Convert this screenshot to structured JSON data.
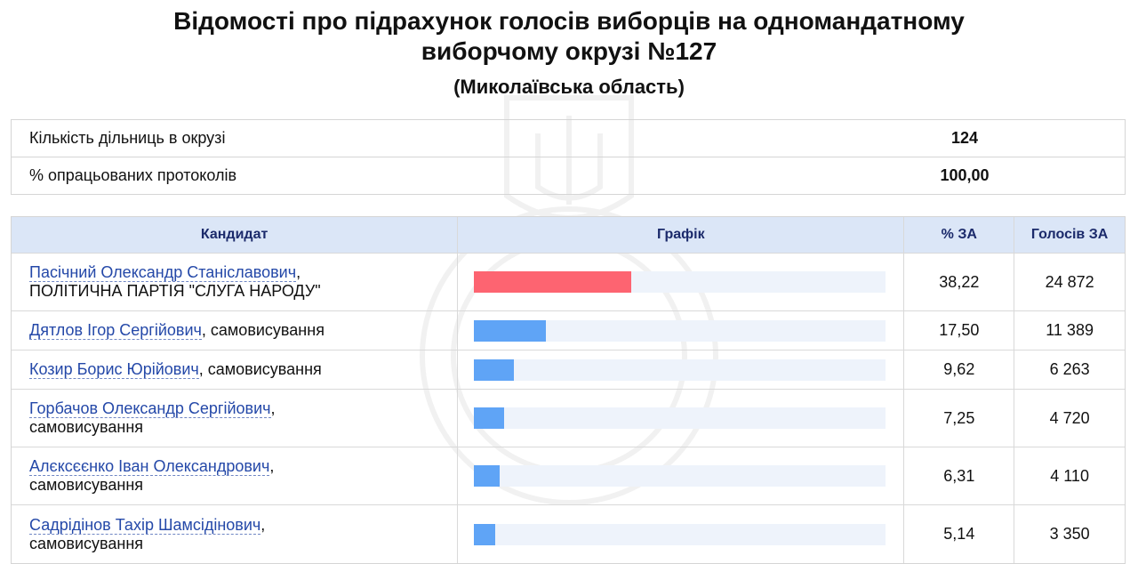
{
  "header": {
    "title": "Відомості про підрахунок голосів виборців на одномандатному виборчому окрузі №127",
    "subtitle": "(Миколаївська область)"
  },
  "summary": {
    "rows": [
      {
        "label": "Кількість дільниць в окрузі",
        "value": "124"
      },
      {
        "label": "% опрацьованих протоколів",
        "value": "100,00"
      }
    ]
  },
  "results": {
    "headers": {
      "candidate": "Кандидат",
      "chart": "Графік",
      "percent": "% ЗА",
      "votes": "Голосів ЗА"
    },
    "colors": {
      "leader_bar": "#fd6471",
      "bar": "#5fa4f6",
      "track": "#eef3fb",
      "header_bg": "#dbe6f7"
    },
    "scale_max_percent": 100,
    "rows": [
      {
        "name": "Пасічний Олександр Станіславович",
        "party": "ПОЛІТИЧНА ПАРТІЯ \"СЛУГА НАРОДУ\"",
        "percent": "38,22",
        "votes": "24 872",
        "share": 38.22
      },
      {
        "name": "Дятлов Ігор Сергійович",
        "party": "самовисування",
        "percent": "17,50",
        "votes": "11 389",
        "share": 17.5
      },
      {
        "name": "Козир Борис Юрійович",
        "party": "самовисування",
        "percent": "9,62",
        "votes": "6 263",
        "share": 9.62
      },
      {
        "name": "Горбачов Олександр Сергійович",
        "party": "самовисування",
        "percent": "7,25",
        "votes": "4 720",
        "share": 7.25
      },
      {
        "name": "Алєксєєнко Іван Олександрович",
        "party": "самовисування",
        "percent": "6,31",
        "votes": "4 110",
        "share": 6.31
      },
      {
        "name": "Садрідінов Тахір Шамсідінович",
        "party": "самовисування",
        "percent": "5,14",
        "votes": "3 350",
        "share": 5.14
      }
    ]
  }
}
